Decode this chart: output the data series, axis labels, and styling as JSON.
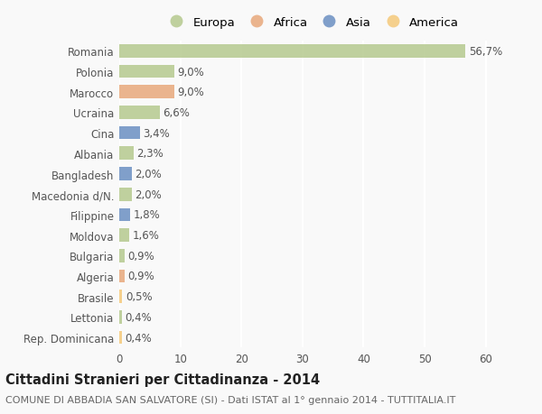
{
  "categories": [
    "Rep. Dominicana",
    "Lettonia",
    "Brasile",
    "Algeria",
    "Bulgaria",
    "Moldova",
    "Filippine",
    "Macedonia d/N.",
    "Bangladesh",
    "Albania",
    "Cina",
    "Ucraina",
    "Marocco",
    "Polonia",
    "Romania"
  ],
  "values": [
    0.4,
    0.4,
    0.5,
    0.9,
    0.9,
    1.6,
    1.8,
    2.0,
    2.0,
    2.3,
    3.4,
    6.6,
    9.0,
    9.0,
    56.7
  ],
  "labels": [
    "0,4%",
    "0,4%",
    "0,5%",
    "0,9%",
    "0,9%",
    "1,6%",
    "1,8%",
    "2,0%",
    "2,0%",
    "2,3%",
    "3,4%",
    "6,6%",
    "9,0%",
    "9,0%",
    "56,7%"
  ],
  "colors": [
    "#f5c97a",
    "#b5c98e",
    "#f5c97a",
    "#e8a87c",
    "#b5c98e",
    "#b5c98e",
    "#6b8fc2",
    "#b5c98e",
    "#6b8fc2",
    "#b5c98e",
    "#6b8fc2",
    "#b5c98e",
    "#e8a87c",
    "#b5c98e",
    "#b5c98e"
  ],
  "legend": {
    "Europa": "#b5c98e",
    "Africa": "#e8a87c",
    "Asia": "#6b8fc2",
    "America": "#f5c97a"
  },
  "title": "Cittadini Stranieri per Cittadinanza - 2014",
  "subtitle": "COMUNE DI ABBADIA SAN SALVATORE (SI) - Dati ISTAT al 1° gennaio 2014 - TUTTITALIA.IT",
  "xlim": [
    0,
    63
  ],
  "xticks": [
    0,
    10,
    20,
    30,
    40,
    50,
    60
  ],
  "background_color": "#f9f9f9",
  "grid_color": "#ffffff",
  "bar_height": 0.65,
  "title_fontsize": 10.5,
  "subtitle_fontsize": 8,
  "tick_fontsize": 8.5,
  "label_fontsize": 8.5,
  "legend_fontsize": 9.5
}
